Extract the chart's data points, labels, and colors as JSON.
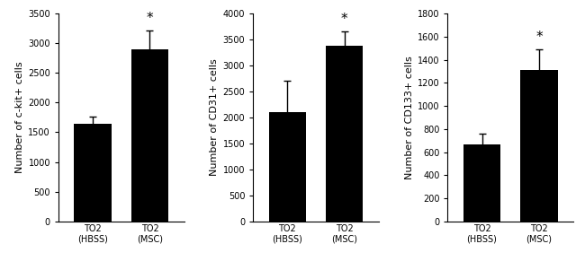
{
  "panels": [
    {
      "ylabel": "Number of c-kit+ cells",
      "ylim": [
        0,
        3500
      ],
      "yticks": [
        0,
        500,
        1000,
        1500,
        2000,
        2500,
        3000,
        3500
      ],
      "bars": [
        1650,
        2900
      ],
      "errors": [
        120,
        320
      ],
      "sig": [
        false,
        true
      ]
    },
    {
      "ylabel": "Number of CD31+ cells",
      "ylim": [
        0,
        4000
      ],
      "yticks": [
        0,
        500,
        1000,
        1500,
        2000,
        2500,
        3000,
        3500,
        4000
      ],
      "bars": [
        2100,
        3380
      ],
      "errors": [
        600,
        280
      ],
      "sig": [
        false,
        true
      ]
    },
    {
      "ylabel": "Number of CD133+ cells",
      "ylim": [
        0,
        1800
      ],
      "yticks": [
        0,
        200,
        400,
        600,
        800,
        1000,
        1200,
        1400,
        1600,
        1800
      ],
      "bars": [
        670,
        1310
      ],
      "errors": [
        90,
        180
      ],
      "sig": [
        false,
        true
      ]
    }
  ],
  "categories": [
    "TO2\n(HBSS)",
    "TO2\n(MSC)"
  ],
  "bar_color": "#000000",
  "bar_width": 0.65,
  "error_color": "#000000",
  "sig_marker": "*",
  "sig_fontsize": 11,
  "tick_fontsize": 7,
  "label_fontsize": 8,
  "cat_fontsize": 7
}
